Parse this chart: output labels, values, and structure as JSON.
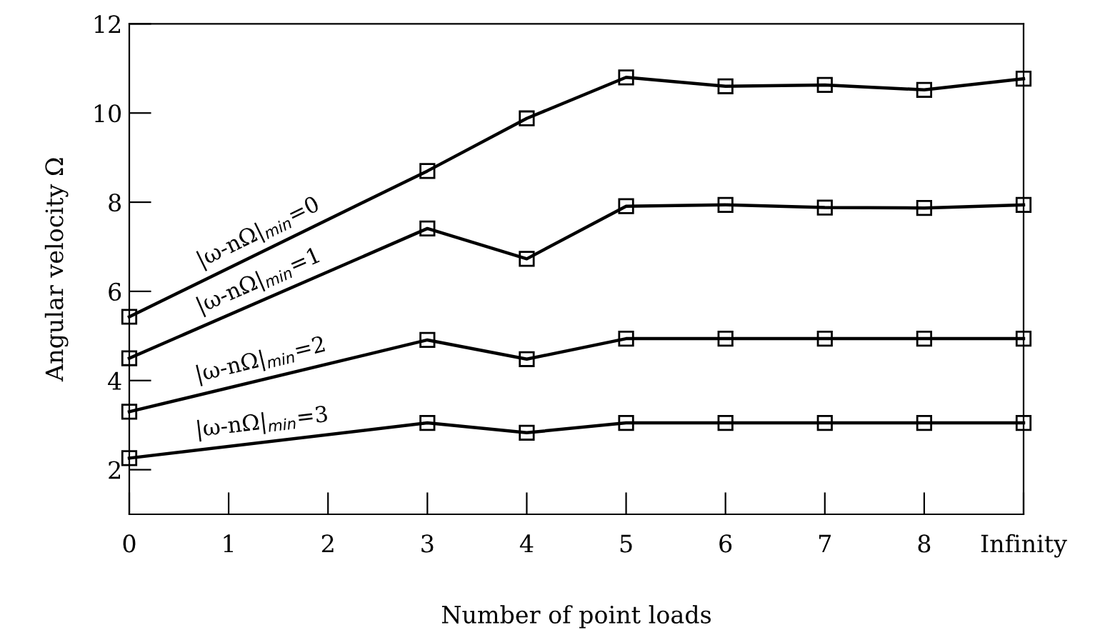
{
  "chart_data": {
    "type": "line",
    "xlabel": "Number of point loads",
    "ylabel": "Angular velocity Ω",
    "x": [
      0,
      3,
      4,
      5,
      6,
      7,
      8,
      9
    ],
    "series": [
      {
        "name": "|ω-nΩ|$_{min}$=0",
        "color": "#000000",
        "values": [
          5.43,
          8.7,
          9.88,
          10.8,
          10.6,
          10.63,
          10.52,
          10.77
        ]
      },
      {
        "name": "|ω-nΩ|$_{min}$=1",
        "color": "#000000",
        "values": [
          4.5,
          7.41,
          6.73,
          7.91,
          7.94,
          7.88,
          7.87,
          7.94
        ]
      },
      {
        "name": "|ω-nΩ|$_{min}$=2",
        "color": "#000000",
        "values": [
          3.3,
          4.91,
          4.48,
          4.94,
          4.94,
          4.94,
          4.94,
          4.94
        ]
      },
      {
        "name": "|ω-nΩ|$_{min}$=3",
        "color": "#000000",
        "values": [
          2.26,
          3.05,
          2.83,
          3.05,
          3.05,
          3.05,
          3.05,
          3.05
        ]
      }
    ],
    "xlim": [
      0,
      9
    ],
    "xticks": [
      0,
      1,
      2,
      3,
      4,
      5,
      6,
      7,
      8,
      {
        "value": 9,
        "label": "Infinity"
      }
    ],
    "ylim": [
      1,
      12
    ],
    "yticks": [
      2,
      4,
      6,
      8,
      10,
      12
    ],
    "marker": "square",
    "line_style": "solid",
    "grid": false,
    "legend": "left"
  }
}
